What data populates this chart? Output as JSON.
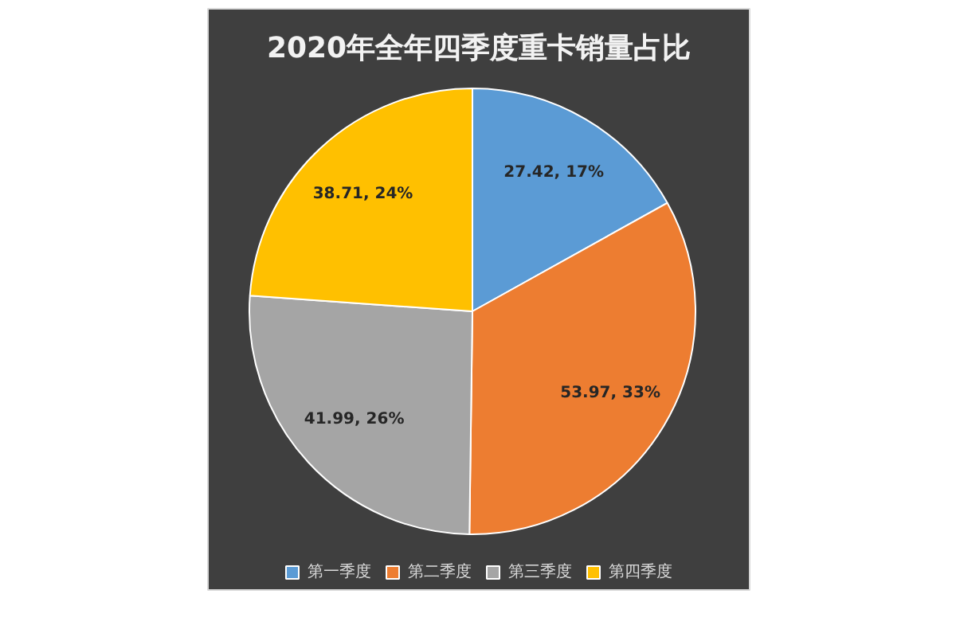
{
  "chart_data": {
    "type": "pie",
    "title": "2020年全年四季度重卡销量占比",
    "categories": [
      "第一季度",
      "第二季度",
      "第三季度",
      "第四季度"
    ],
    "values": [
      27.42,
      53.97,
      41.99,
      38.71
    ],
    "colors": [
      "#5b9bd5",
      "#ed7d31",
      "#a5a5a5",
      "#ffc000"
    ],
    "value_labels": [
      "27.42, 17%",
      "53.97, 33%",
      "41.99, 26%",
      "38.71, 24%"
    ],
    "legend": "bottom"
  }
}
